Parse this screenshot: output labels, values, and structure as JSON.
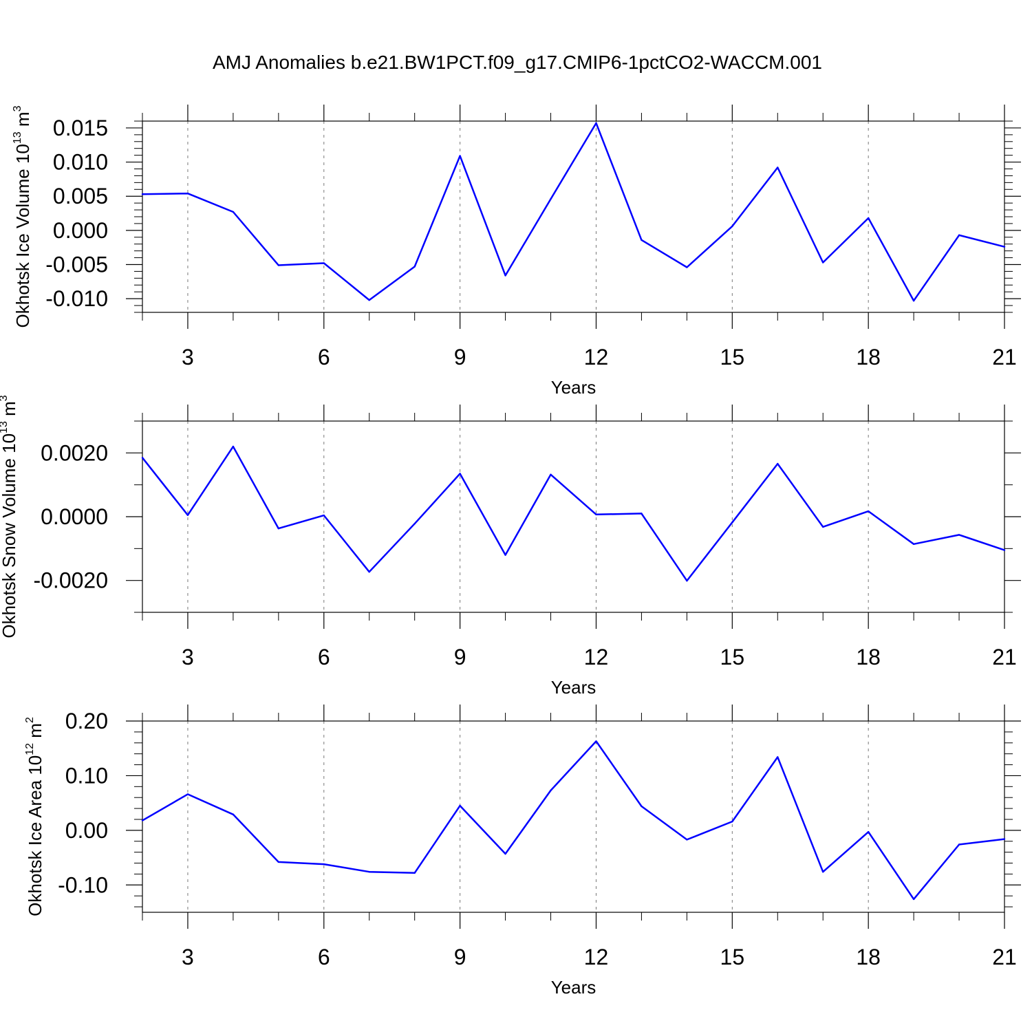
{
  "title": "AMJ Anomalies b.e21.BW1PCT.f09_g17.CMIP6-1pctCO2-WACCM.001",
  "chart_data": [
    {
      "type": "line",
      "ylabel": "Okhotsk Ice Volume",
      "ylabel_exp_base": "10",
      "ylabel_exp": "13",
      "ylabel_unit": "m",
      "ylabel_unit_exp": "3",
      "xlabel": "Years",
      "xlim": [
        2,
        21
      ],
      "ylim": [
        -0.012,
        0.016
      ],
      "x_ticks": [
        3,
        6,
        9,
        12,
        15,
        18,
        21
      ],
      "x_tick_labels": [
        "3",
        "6",
        "9",
        "12",
        "15",
        "18",
        "21"
      ],
      "y_ticks": [
        -0.01,
        -0.005,
        0.0,
        0.005,
        0.01,
        0.015
      ],
      "y_tick_labels": [
        "-0.010",
        "-0.005",
        "0.000",
        "0.005",
        "0.010",
        "0.015"
      ],
      "y_minor_step": 0.001,
      "x_minor_step": 1,
      "grid": "vertical dashed at major x ticks",
      "color": "#0000ff",
      "x": [
        2,
        3,
        4,
        5,
        6,
        7,
        8,
        9,
        10,
        11,
        12,
        13,
        14,
        15,
        16,
        17,
        18,
        19,
        20,
        21
      ],
      "values": [
        0.0053,
        0.0054,
        0.0027,
        -0.0051,
        -0.0048,
        -0.0102,
        -0.0053,
        0.0109,
        -0.0066,
        0.0046,
        0.0157,
        -0.0014,
        -0.0054,
        0.0006,
        0.0092,
        -0.0047,
        0.0018,
        -0.0103,
        -0.0007,
        -0.0024
      ]
    },
    {
      "type": "line",
      "ylabel": "Okhotsk Snow Volume",
      "ylabel_exp_base": "10",
      "ylabel_exp": "13",
      "ylabel_unit": "m",
      "ylabel_unit_exp": "3",
      "xlabel": "Years",
      "xlim": [
        2,
        21
      ],
      "ylim": [
        -0.003,
        0.003
      ],
      "x_ticks": [
        3,
        6,
        9,
        12,
        15,
        18,
        21
      ],
      "x_tick_labels": [
        "3",
        "6",
        "9",
        "12",
        "15",
        "18",
        "21"
      ],
      "y_ticks": [
        -0.002,
        0.0,
        0.002
      ],
      "y_tick_labels": [
        "-0.0020",
        "0.0000",
        "0.0020"
      ],
      "y_minor_step": 0.001,
      "x_minor_step": 1,
      "grid": "vertical dashed at major x ticks",
      "color": "#0000ff",
      "x": [
        2,
        3,
        4,
        5,
        6,
        7,
        8,
        9,
        10,
        11,
        12,
        13,
        14,
        15,
        16,
        17,
        18,
        19,
        20,
        21
      ],
      "values": [
        0.00185,
        5e-05,
        0.0022,
        -0.00037,
        4e-05,
        -0.00173,
        -0.00022,
        0.00135,
        -0.0012,
        0.00132,
        7e-05,
        0.0001,
        -0.00201,
        -0.00018,
        0.00166,
        -0.00032,
        0.00017,
        -0.00086,
        -0.00057,
        -0.00105
      ]
    },
    {
      "type": "line",
      "ylabel": "Okhotsk Ice Area",
      "ylabel_exp_base": "10",
      "ylabel_exp": "12",
      "ylabel_unit": "m",
      "ylabel_unit_exp": "2",
      "xlabel": "Years",
      "xlim": [
        2,
        21
      ],
      "ylim": [
        -0.15,
        0.2
      ],
      "x_ticks": [
        3,
        6,
        9,
        12,
        15,
        18,
        21
      ],
      "x_tick_labels": [
        "3",
        "6",
        "9",
        "12",
        "15",
        "18",
        "21"
      ],
      "y_ticks": [
        -0.1,
        0.0,
        0.1,
        0.2
      ],
      "y_tick_labels": [
        "-0.10",
        "0.00",
        "0.10",
        "0.20"
      ],
      "y_minor_step": 0.02,
      "x_minor_step": 1,
      "grid": "vertical dashed at major x ticks",
      "color": "#0000ff",
      "x": [
        2,
        3,
        4,
        5,
        6,
        7,
        8,
        9,
        10,
        11,
        12,
        13,
        14,
        15,
        16,
        17,
        18,
        19,
        20,
        21
      ],
      "values": [
        0.018,
        0.066,
        0.029,
        -0.058,
        -0.062,
        -0.076,
        -0.078,
        0.045,
        -0.043,
        0.073,
        0.163,
        0.044,
        -0.017,
        0.016,
        0.134,
        -0.076,
        -0.003,
        -0.126,
        -0.026,
        -0.016
      ]
    }
  ]
}
